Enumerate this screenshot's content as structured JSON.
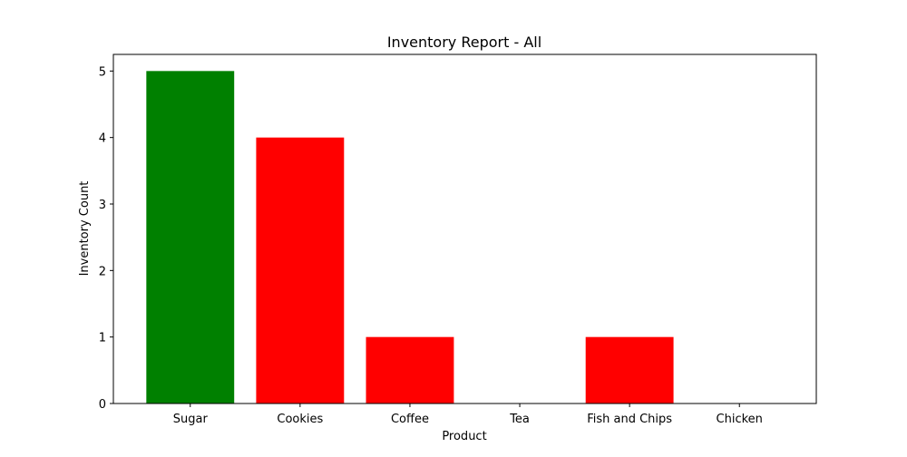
{
  "chart_data": {
    "type": "bar",
    "title": "Inventory Report - All",
    "xlabel": "Product",
    "ylabel": "Inventory Count",
    "categories": [
      "Sugar",
      "Cookies",
      "Coffee",
      "Tea",
      "Fish and Chips",
      "Chicken"
    ],
    "values": [
      5,
      4,
      1,
      0,
      1,
      0
    ],
    "bar_colors": [
      "#008000",
      "#ff0000",
      "#ff0000",
      "#ff0000",
      "#ff0000",
      "#ff0000"
    ],
    "ylim": [
      0,
      5.25
    ],
    "yticks": [
      0,
      1,
      2,
      3,
      4,
      5
    ],
    "grid": false,
    "legend": "none"
  }
}
